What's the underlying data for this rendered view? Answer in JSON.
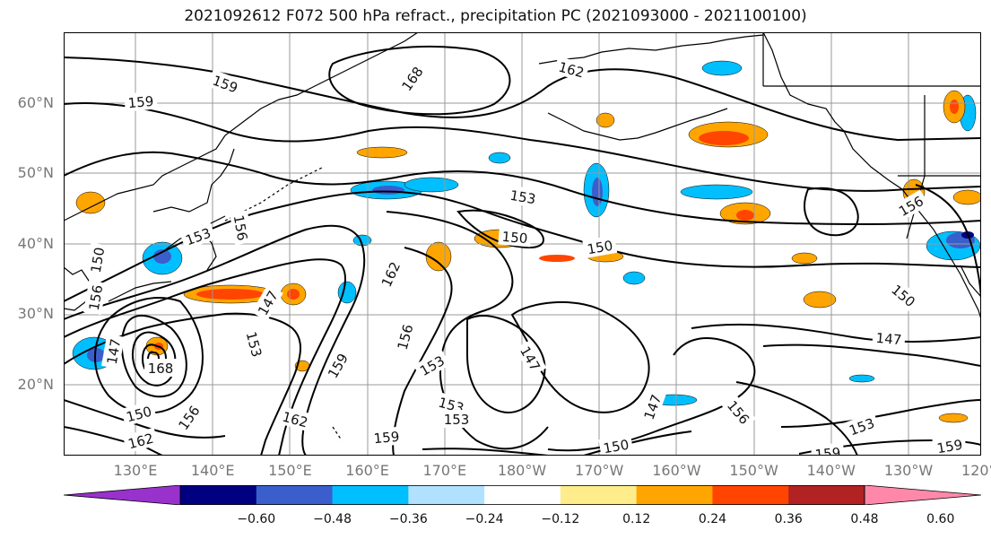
{
  "title": "2021092612 F072 500 hPa refract., precipitation PC (2021093000 - 2021100100)",
  "lat_labels": [
    "60°N",
    "50°N",
    "40°N",
    "30°N",
    "20°N"
  ],
  "lon_labels": [
    "130°E",
    "140°E",
    "150°E",
    "160°E",
    "170°E",
    "180°W",
    "170°W",
    "160°W",
    "150°W",
    "140°W",
    "130°W",
    "120°W"
  ],
  "contour_labels": [
    "159",
    "168",
    "162",
    "159",
    "153",
    "150",
    "150",
    "156",
    "156",
    "153",
    "150",
    "162",
    "147",
    "153",
    "156",
    "153",
    "147",
    "159",
    "162",
    "153",
    "153",
    "147",
    "156",
    "159",
    "150",
    "147",
    "150",
    "159",
    "153",
    "159",
    "150",
    "147",
    "156",
    "168",
    "162",
    "156"
  ],
  "colorbar": {
    "colors": [
      "#9932cc",
      "#000080",
      "#3a5fcd",
      "#00bfff",
      "#b0e2ff",
      "#ffffff",
      "#ffec8b",
      "#ffa500",
      "#ff4500",
      "#b22222",
      "#ff88aa"
    ],
    "tick_labels": [
      "−0.60",
      "−0.48",
      "−0.36",
      "−0.24",
      "−0.12",
      "0.12",
      "0.24",
      "0.36",
      "0.48",
      "0.60"
    ]
  },
  "colors": {
    "coast": "#000000",
    "grid": "#999999",
    "contour": "#000000"
  }
}
